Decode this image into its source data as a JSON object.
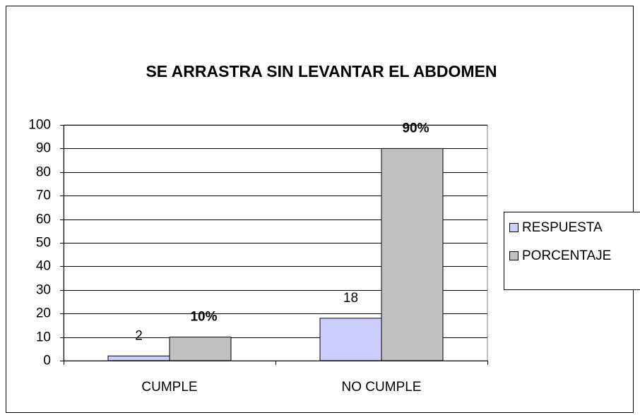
{
  "chart_data": {
    "type": "bar",
    "title": "SE ARRASTRA SIN LEVANTAR EL ABDOMEN",
    "categories": [
      "CUMPLE",
      "NO CUMPLE"
    ],
    "series": [
      {
        "name": "RESPUESTA",
        "color": "#ccccff",
        "values": [
          2,
          18
        ]
      },
      {
        "name": "PORCENTAJE",
        "color": "#c0c0c0",
        "values": [
          10,
          90
        ],
        "value_labels": [
          "10%",
          "90%"
        ]
      }
    ],
    "ylim": [
      0,
      100
    ],
    "yticks": [
      0,
      10,
      20,
      30,
      40,
      50,
      60,
      70,
      80,
      90,
      100
    ],
    "grid": true,
    "legend": "right"
  }
}
